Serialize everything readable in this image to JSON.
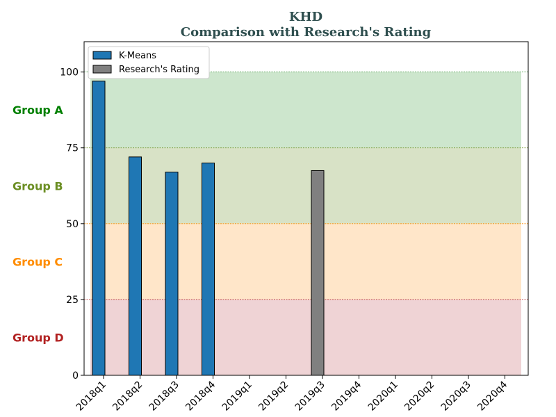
{
  "chart_data": {
    "type": "bar",
    "title": "KHD",
    "subtitle": "Comparison with Research's Rating",
    "categories": [
      "2018q1",
      "2018q2",
      "2018q3",
      "2018q4",
      "2019q1",
      "2019q2",
      "2019q3",
      "2019q4",
      "2020q1",
      "2020q2",
      "2020q3",
      "2020q4"
    ],
    "series": [
      {
        "name": "K-Means",
        "color": "#1f77b4",
        "values": [
          97,
          72,
          67,
          70,
          null,
          null,
          null,
          null,
          null,
          null,
          null,
          null
        ]
      },
      {
        "name": "Research's Rating",
        "color": "#808080",
        "values": [
          null,
          null,
          null,
          null,
          null,
          null,
          67.5,
          null,
          null,
          null,
          null,
          null
        ]
      }
    ],
    "ylim": [
      0,
      110
    ],
    "yticks": [
      0,
      25,
      50,
      75,
      100
    ],
    "legend_position": "top-left",
    "bands": [
      {
        "label": "Group A",
        "from": 75,
        "to": 100,
        "fill": "#cde6cd",
        "line_color": "#2e8b2e",
        "label_color": "#008000"
      },
      {
        "label": "Group B",
        "from": 50,
        "to": 75,
        "fill": "#d8e2c6",
        "line_color": "#6b8e23",
        "label_color": "#6b8e23"
      },
      {
        "label": "Group C",
        "from": 25,
        "to": 50,
        "fill": "#ffe6c9",
        "line_color": "#ff8c00",
        "label_color": "#ff8c00"
      },
      {
        "label": "Group D",
        "from": 0,
        "to": 25,
        "fill": "#efd3d5",
        "line_color": "#b22222",
        "label_color": "#b22222"
      }
    ]
  }
}
